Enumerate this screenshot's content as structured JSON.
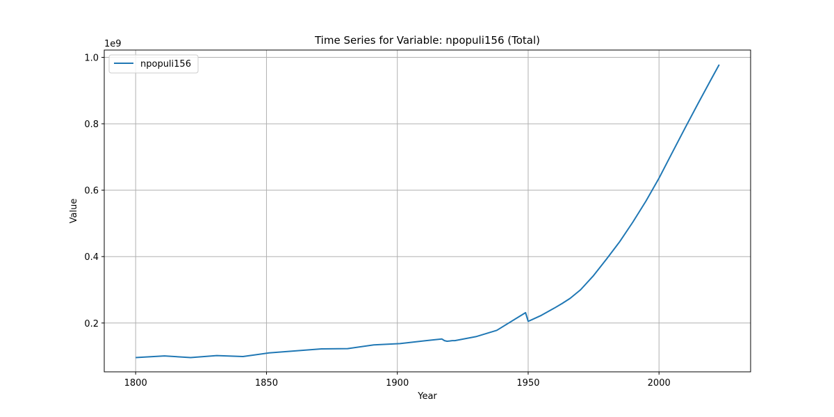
{
  "chart_data": {
    "type": "line",
    "title": "Time Series for Variable: npopuli156 (Total)",
    "xlabel": "Year",
    "ylabel": "Value",
    "y_offset_label": "1e9",
    "xlim": [
      1788,
      2035
    ],
    "ylim": [
      0.053,
      1.022
    ],
    "y_scale_multiplier": 1000000000,
    "x_ticks": [
      1800,
      1850,
      1900,
      1950,
      2000
    ],
    "x_tick_labels": [
      "1800",
      "1850",
      "1900",
      "1950",
      "2000"
    ],
    "y_ticks": [
      0.2,
      0.4,
      0.6,
      0.8,
      1.0
    ],
    "y_tick_labels": [
      "0.2",
      "0.4",
      "0.6",
      "0.8",
      "1.0"
    ],
    "grid": true,
    "legend_position": "top-left",
    "series": [
      {
        "name": "npopuli156",
        "color": "#1f77b4",
        "x": [
          1800,
          1811,
          1821,
          1831,
          1841,
          1851,
          1861,
          1871,
          1881,
          1891,
          1901,
          1911,
          1917,
          1918,
          1919,
          1920,
          1921,
          1922,
          1930,
          1938,
          1949,
          1950,
          1955,
          1960,
          1963,
          1966,
          1970,
          1975,
          1980,
          1985,
          1990,
          1995,
          2000,
          2005,
          2010,
          2015,
          2020,
          2023
        ],
        "values": [
          0.096,
          0.101,
          0.096,
          0.102,
          0.099,
          0.11,
          0.116,
          0.122,
          0.123,
          0.134,
          0.138,
          0.147,
          0.152,
          0.147,
          0.145,
          0.146,
          0.147,
          0.147,
          0.159,
          0.178,
          0.231,
          0.205,
          0.223,
          0.245,
          0.259,
          0.274,
          0.3,
          0.343,
          0.393,
          0.445,
          0.504,
          0.567,
          0.636,
          0.712,
          0.788,
          0.862,
          0.935,
          0.978
        ]
      }
    ]
  }
}
